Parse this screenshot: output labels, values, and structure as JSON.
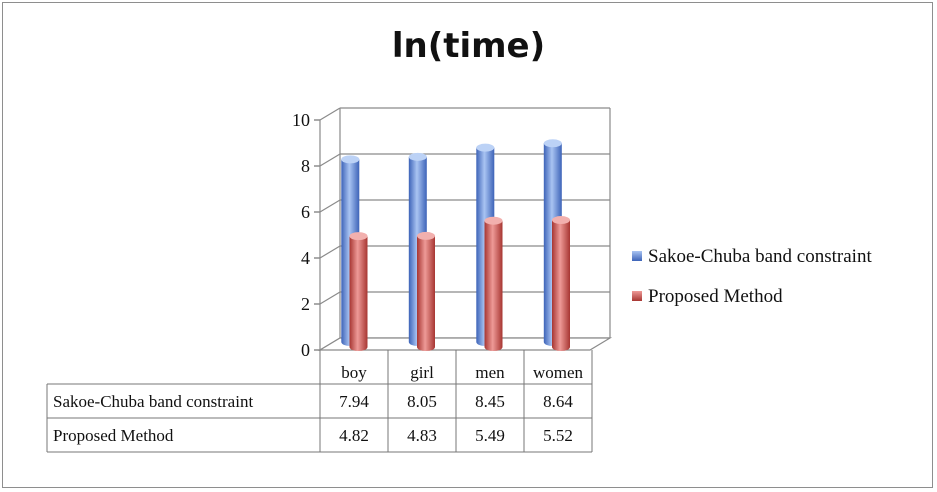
{
  "chart_data": {
    "type": "bar",
    "title": "ln(time)",
    "categories": [
      "boy",
      "girl",
      "men",
      "women"
    ],
    "series": [
      {
        "name": "Sakoe-Chuba band constraint",
        "values": [
          7.94,
          8.05,
          8.45,
          8.64
        ],
        "display": [
          "7.94",
          "8.05",
          "8.45",
          "8.64"
        ],
        "color": "#5b86d6"
      },
      {
        "name": "Proposed Method",
        "values": [
          4.82,
          4.83,
          5.49,
          5.52
        ],
        "display": [
          "4.82",
          "4.83",
          "5.49",
          "5.52"
        ],
        "color": "#cc4f4c"
      }
    ],
    "yticks": [
      "0",
      "2",
      "4",
      "6",
      "8",
      "10"
    ],
    "ylim": [
      0,
      10
    ],
    "grid": true,
    "legend": "right",
    "data_table": true,
    "style": "3d-cylinder"
  }
}
